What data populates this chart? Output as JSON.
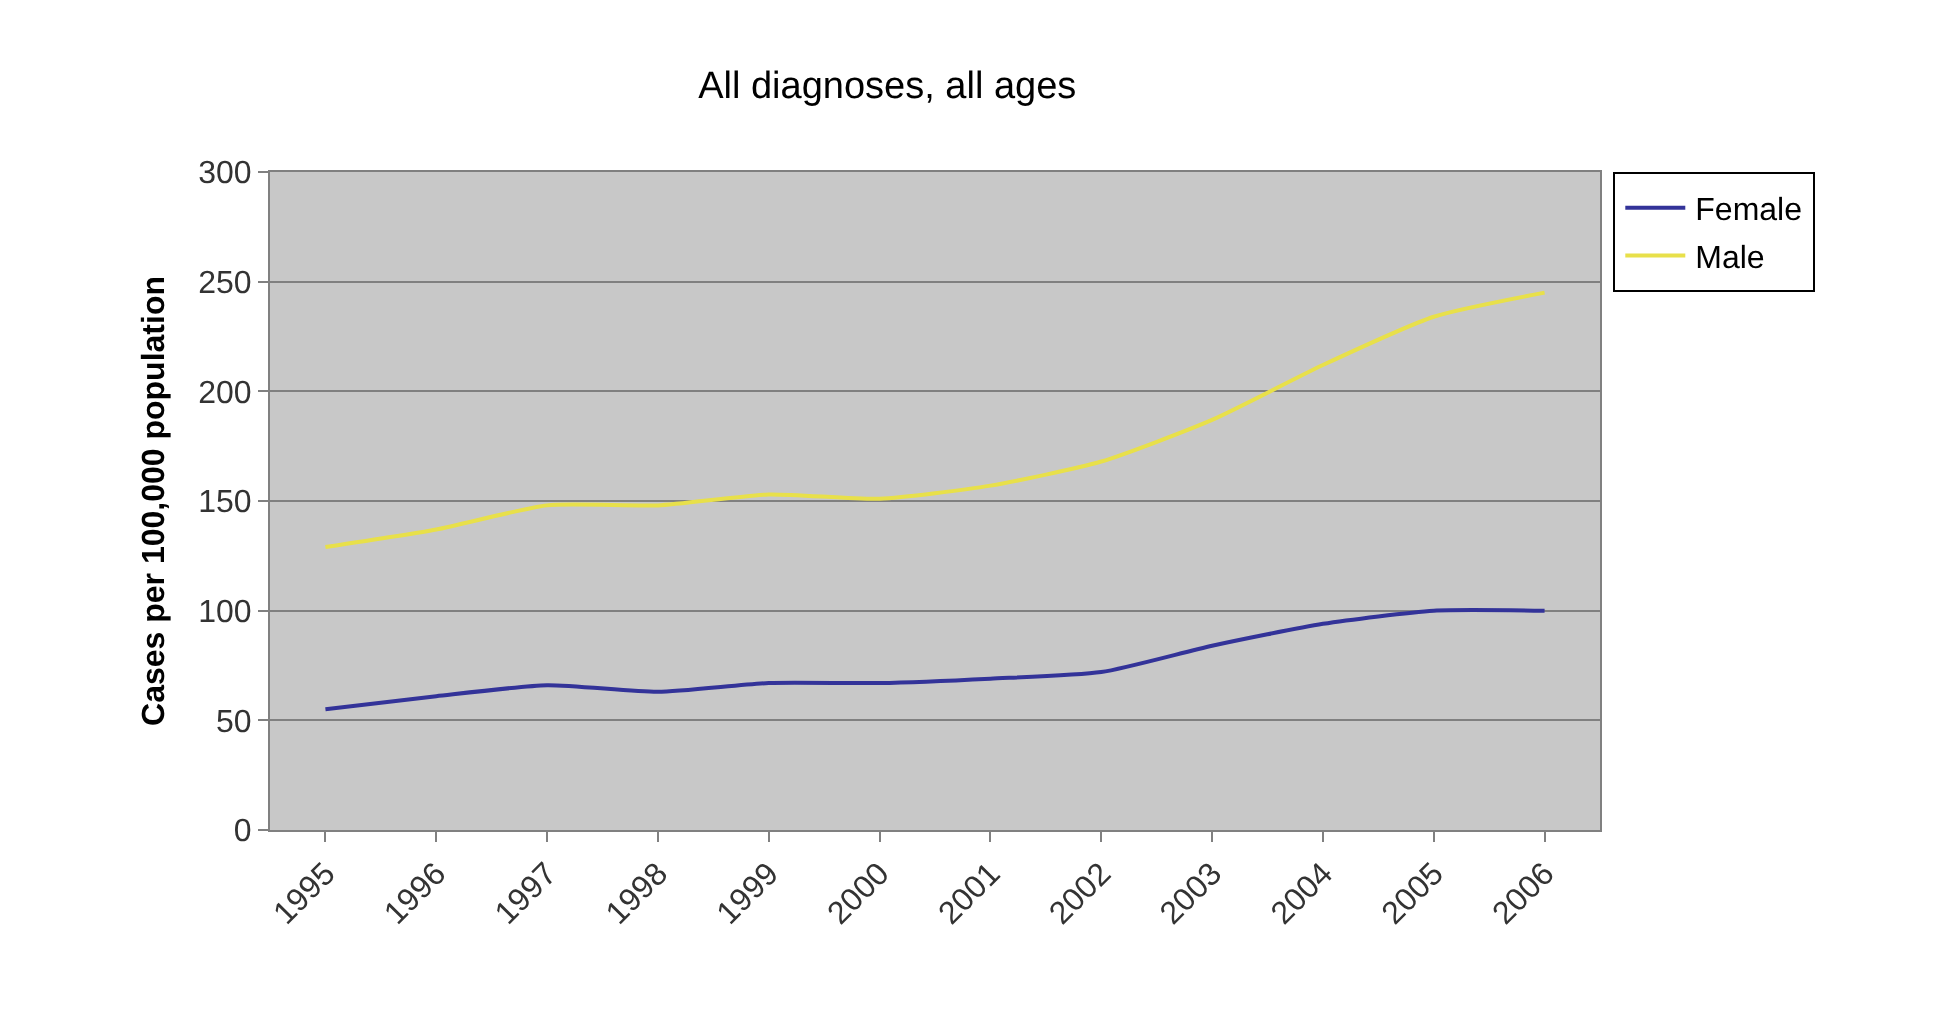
{
  "chart_data": {
    "type": "line",
    "title": "All diagnoses, all ages",
    "ylabel": "Cases per 100,000 population",
    "categories": [
      "1995",
      "1996",
      "1997",
      "1998",
      "1999",
      "2000",
      "2001",
      "2002",
      "2003",
      "2004",
      "2005",
      "2006"
    ],
    "series": [
      {
        "name": "Female",
        "color": "#333399",
        "values": [
          55,
          61,
          66,
          63,
          67,
          67,
          69,
          72,
          84,
          94,
          100,
          100
        ]
      },
      {
        "name": "Male",
        "color": "#e8e04a",
        "values": [
          129,
          137,
          148,
          148,
          153,
          151,
          157,
          168,
          187,
          212,
          234,
          245
        ]
      }
    ],
    "ylim": [
      0,
      300
    ],
    "yticks": [
      0,
      50,
      100,
      150,
      200,
      250,
      300
    ],
    "grid": "y",
    "legend": "top right",
    "marker": "none",
    "line_style": "solid"
  }
}
